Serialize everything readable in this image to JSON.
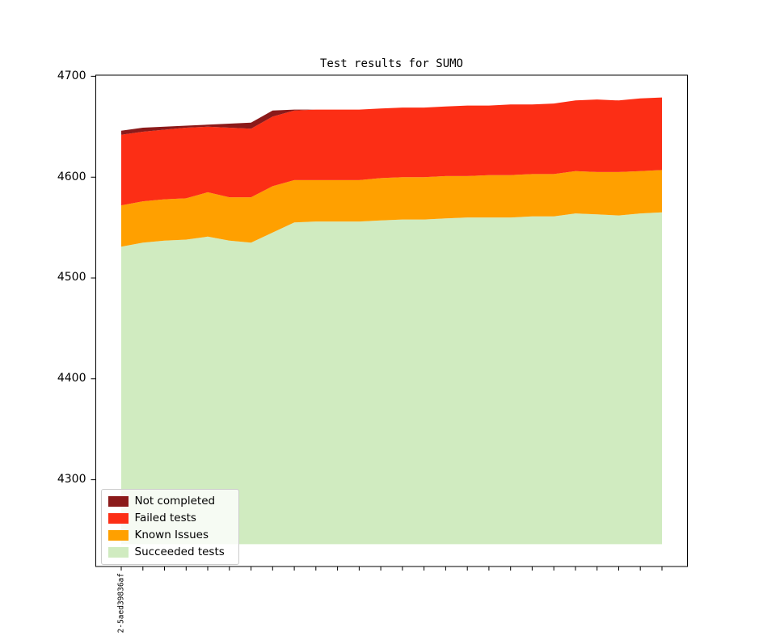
{
  "title": "Test results for SUMO",
  "colors": {
    "not_completed": "#8B1A1A",
    "failed": "#FC2E15",
    "known_issues": "#FFA000",
    "succeeded": "#D0EBC0",
    "axis": "#000000",
    "legend_border": "#CCCCCC"
  },
  "chart_data": {
    "type": "area",
    "stacked": true,
    "title": "Test results for SUMO",
    "xlabel": "",
    "ylabel": "",
    "grid": false,
    "ylim": [
      4213.9,
      4701.1
    ],
    "yticks": [
      4300,
      4400,
      4500,
      4600,
      4700
    ],
    "baseline": 4236,
    "x_tick_labels": [
      "2-5aed39836af",
      "",
      "",
      "",
      "",
      "",
      "",
      "",
      "",
      "",
      "",
      "",
      "",
      "",
      "",
      "",
      "",
      "",
      "",
      "",
      "",
      "",
      "",
      "",
      "",
      ""
    ],
    "series": [
      {
        "name": "Succeeded tests",
        "color": "#D0EBC0",
        "values": [
          4531,
          4535,
          4537,
          4538,
          4541,
          4537,
          4535,
          4545,
          4555,
          4556,
          4556,
          4556,
          4557,
          4558,
          4558,
          4559,
          4560,
          4560,
          4560,
          4561,
          4561,
          4564,
          4563,
          4562,
          4564,
          4565
        ]
      },
      {
        "name": "Known Issues",
        "color": "#FFA000",
        "values": [
          41,
          41,
          41,
          41,
          44,
          43,
          45,
          46,
          42,
          41,
          41,
          41,
          42,
          42,
          42,
          42,
          41,
          42,
          42,
          42,
          42,
          42,
          42,
          43,
          42,
          42
        ]
      },
      {
        "name": "Failed tests",
        "color": "#FC2E15",
        "values": [
          70,
          69,
          69,
          70,
          65,
          69,
          68,
          69,
          69,
          70,
          70,
          70,
          69,
          69,
          69,
          69,
          70,
          69,
          70,
          69,
          70,
          70,
          72,
          71,
          72,
          72
        ]
      },
      {
        "name": "Not completed",
        "color": "#8B1A1A",
        "values": [
          4,
          4,
          3,
          2,
          2,
          4,
          6,
          6,
          1,
          0,
          0,
          0,
          0,
          0,
          0,
          0,
          0,
          0,
          0,
          0,
          0,
          0,
          0,
          0,
          0,
          0
        ]
      }
    ],
    "legend": {
      "position": "lower left",
      "entries": [
        {
          "label": "Not completed",
          "color": "#8B1A1A"
        },
        {
          "label": "Failed tests",
          "color": "#FC2E15"
        },
        {
          "label": "Known Issues",
          "color": "#FFA000"
        },
        {
          "label": "Succeeded tests",
          "color": "#D0EBC0"
        }
      ]
    }
  }
}
